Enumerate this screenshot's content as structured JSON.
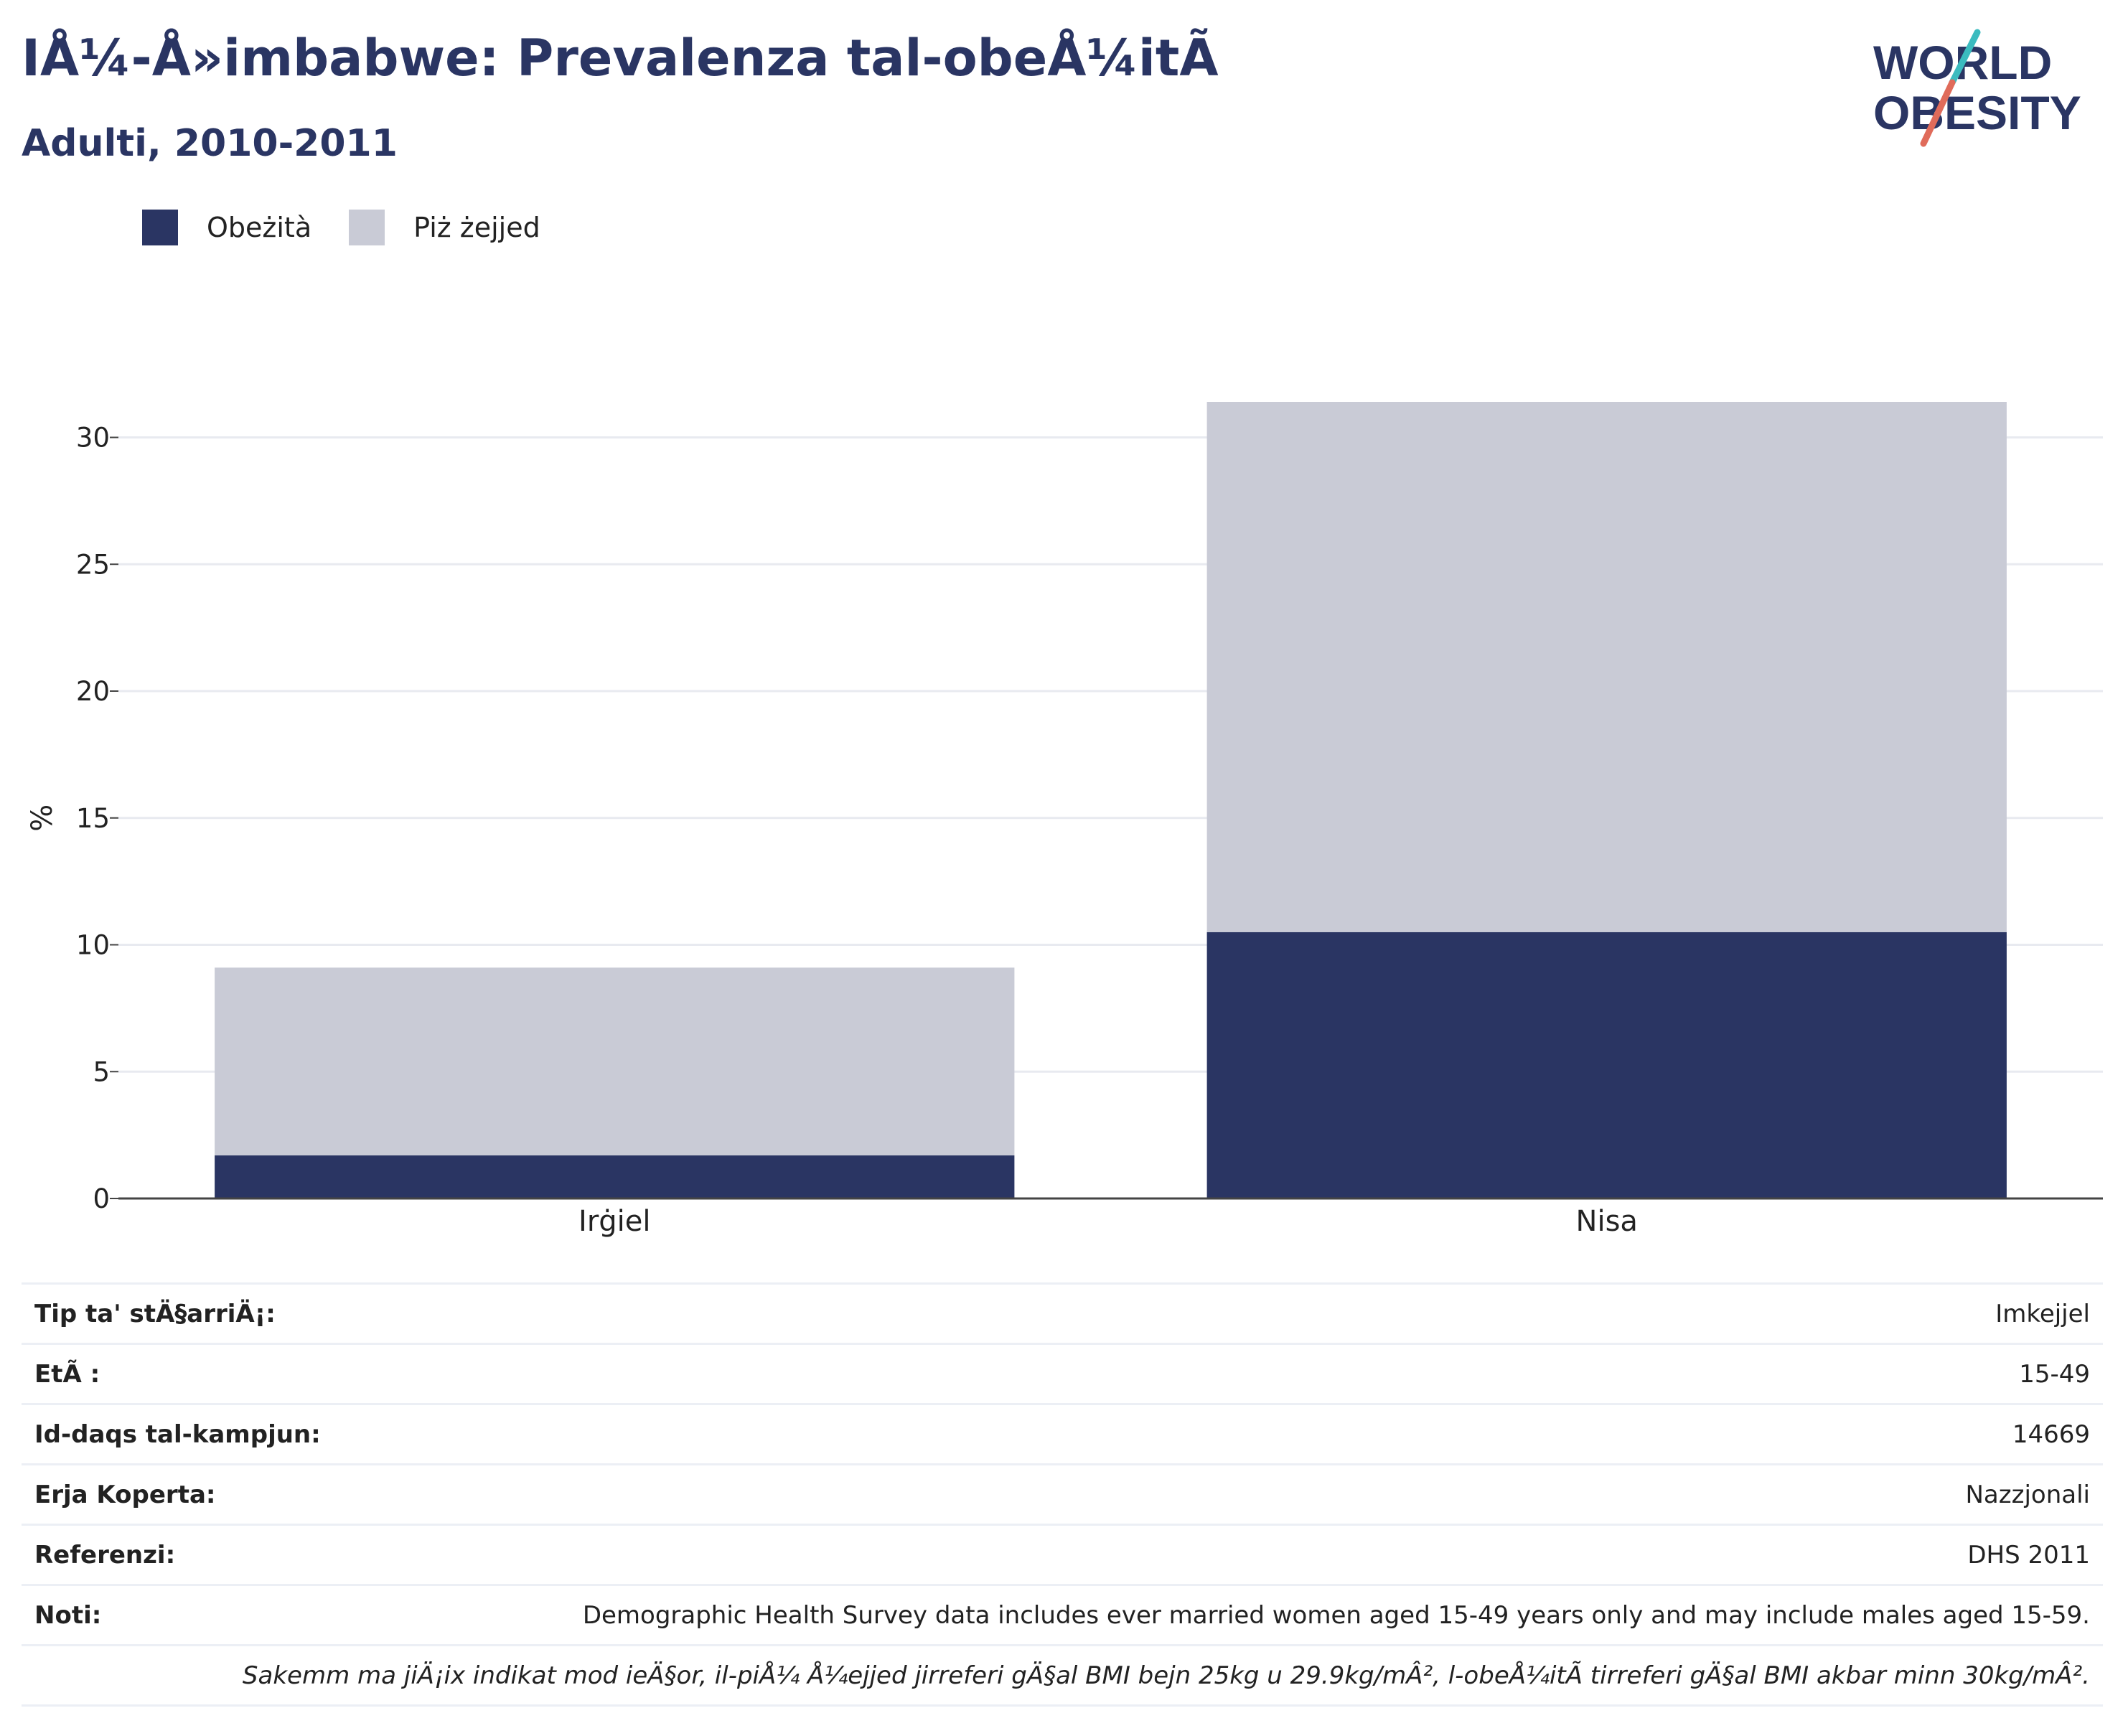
{
  "header": {
    "title": "IÅ¼-Å»imbabwe: Prevalenza tal-obeÅ¼itÃ",
    "subtitle": "Adulti, 2010-2011"
  },
  "logo": {
    "line1": "WORLD",
    "line2": "OBESITY"
  },
  "colors": {
    "obesity": "#2a3563",
    "overweight": "#c9cbd6",
    "accent_teal": "#3bbbbf",
    "accent_red": "#e06b5a"
  },
  "legend": [
    {
      "label": "Obeżità",
      "color": "#2a3563"
    },
    {
      "label": "Piż żejjed",
      "color": "#c9cbd6"
    }
  ],
  "chart_data": {
    "type": "bar",
    "stacked": true,
    "categories": [
      "Irġiel",
      "Nisa"
    ],
    "series": [
      {
        "name": "Obeżità",
        "values": [
          1.7,
          10.5
        ]
      },
      {
        "name": "Piż żejjed",
        "values": [
          7.4,
          20.9
        ]
      }
    ],
    "ylabel": "%",
    "xlabel": "",
    "ylim": [
      0,
      33
    ],
    "yticks": [
      0,
      5,
      10,
      15,
      20,
      25,
      30
    ],
    "grid": true,
    "legend_position": "top-left"
  },
  "info_rows": [
    {
      "label": "Tip ta' stÄ§arriÄ¡:",
      "value": "Imkejjel"
    },
    {
      "label": "EtÃ :",
      "value": "15-49"
    },
    {
      "label": "Id-daqs tal-kampjun:",
      "value": "14669"
    },
    {
      "label": "Erja Koperta:",
      "value": "Nazzjonali"
    },
    {
      "label": "Referenzi:",
      "value": "DHS 2011"
    },
    {
      "label": "Noti:",
      "value": "Demographic Health Survey data includes ever married women aged 15-49 years only and may include males aged 15-59."
    }
  ],
  "footnote": "Sakemm ma jiÄ¡ix indikat mod ieÄ§or, il-piÅ¼ Å¼ejjed jirreferi gÄ§al BMI bejn 25kg u 29.9kg/mÂ², l-obeÅ¼itÃ  tirreferi gÄ§al BMI akbar minn 30kg/mÂ²."
}
